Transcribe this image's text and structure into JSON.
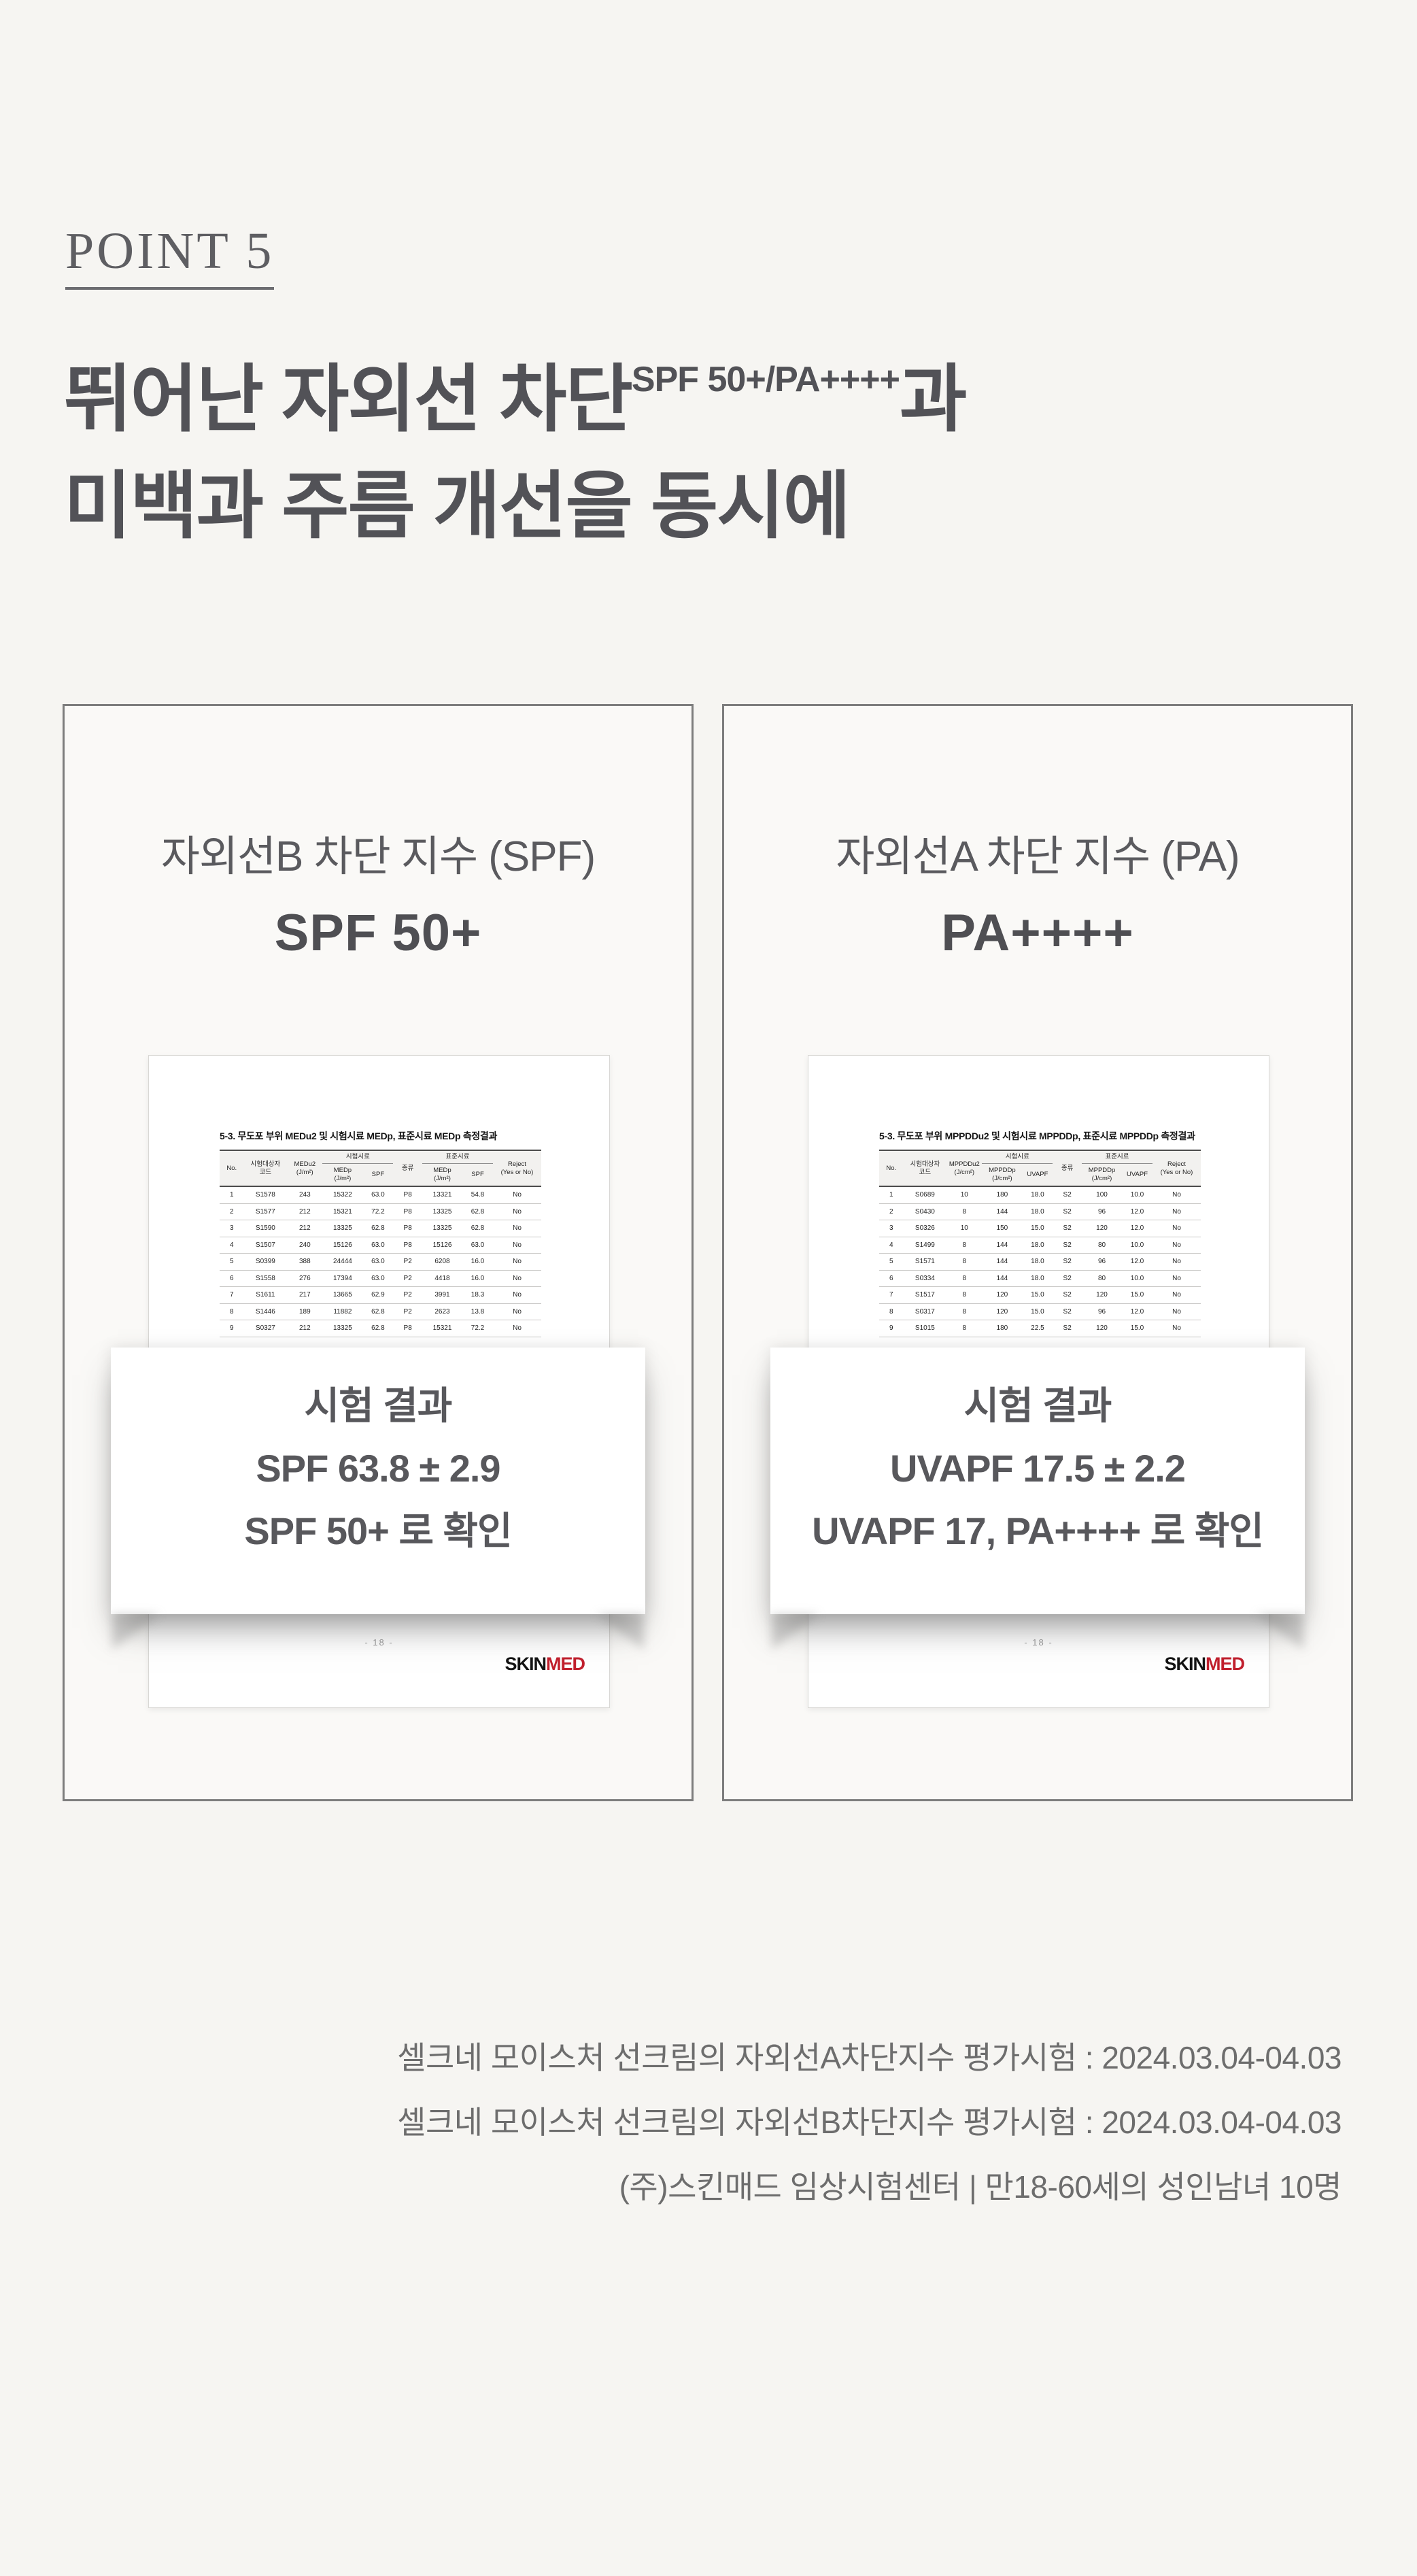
{
  "page": {
    "eyebrow": "POINT 5",
    "title": {
      "line1_prefix": "뛰어난 자외선 차단",
      "superscript": "SPF 50+/PA++++",
      "line1_suffix": "과",
      "line2": "미백과 주름 개선을 동시에"
    },
    "colors": {
      "background": "#f6f5f2",
      "heading_text": "#525257",
      "panel_border": "#7d7d7d",
      "logo_red": "#c2202e",
      "footer_text": "#6d6d6d"
    }
  },
  "panels": [
    {
      "subtitle": "자외선B 차단 지수 (SPF)",
      "headline": "SPF 50+",
      "document": {
        "table_title": "5-3. 무도포 부위 MEDu2 및 시험시료 MEDp, 표준시료 MEDp 측정결과",
        "headers": {
          "no": "No.",
          "subject_code": "시험대상자\n코드",
          "unprotected": "MEDu2\n(J/m²)",
          "group_test": "시험시료",
          "test_dose": "MEDp\n(J/m²)",
          "test_index": "SPF",
          "type": "종류",
          "group_standard": "표준시료",
          "standard_dose": "MEDp\n(J/m²)",
          "standard_index": "SPF",
          "reject": "Reject\n(Yes or No)"
        },
        "rows": [
          [
            "1",
            "S1578",
            "243",
            "15322",
            "63.0",
            "P8",
            "13321",
            "54.8",
            "No"
          ],
          [
            "2",
            "S1577",
            "212",
            "15321",
            "72.2",
            "P8",
            "13325",
            "62.8",
            "No"
          ],
          [
            "3",
            "S1590",
            "212",
            "13325",
            "62.8",
            "P8",
            "13325",
            "62.8",
            "No"
          ],
          [
            "4",
            "S1507",
            "240",
            "15126",
            "63.0",
            "P8",
            "15126",
            "63.0",
            "No"
          ],
          [
            "5",
            "S0399",
            "388",
            "24444",
            "63.0",
            "P2",
            "6208",
            "16.0",
            "No"
          ],
          [
            "6",
            "S1558",
            "276",
            "17394",
            "63.0",
            "P2",
            "4418",
            "16.0",
            "No"
          ],
          [
            "7",
            "S1611",
            "217",
            "13665",
            "62.9",
            "P2",
            "3991",
            "18.3",
            "No"
          ],
          [
            "8",
            "S1446",
            "189",
            "11882",
            "62.8",
            "P2",
            "2623",
            "13.8",
            "No"
          ],
          [
            "9",
            "S0327",
            "212",
            "13325",
            "62.8",
            "P8",
            "15321",
            "72.2",
            "No"
          ]
        ],
        "page_number": "- 18 -",
        "logo_black": "SKIN",
        "logo_red": "MED"
      },
      "result": {
        "heading": "시험 결과",
        "value": "SPF 63.8 ± 2.9",
        "confirm": "SPF 50+ 로 확인"
      }
    },
    {
      "subtitle": "자외선A 차단 지수 (PA)",
      "headline": "PA++++",
      "document": {
        "table_title": "5-3. 무도포 부위 MPPDDu2 및 시험시료 MPPDDp, 표준시료 MPPDDp 측정결과",
        "headers": {
          "no": "No.",
          "subject_code": "시험대상자\n코드",
          "unprotected": "MPPDDu2\n(J/cm²)",
          "group_test": "시험시료",
          "test_dose": "MPPDDp\n(J/cm²)",
          "test_index": "UVAPF",
          "type": "종류",
          "group_standard": "표준시료",
          "standard_dose": "MPPDDp\n(J/cm²)",
          "standard_index": "UVAPF",
          "reject": "Reject\n(Yes or No)"
        },
        "rows": [
          [
            "1",
            "S0689",
            "10",
            "180",
            "18.0",
            "S2",
            "100",
            "10.0",
            "No"
          ],
          [
            "2",
            "S0430",
            "8",
            "144",
            "18.0",
            "S2",
            "96",
            "12.0",
            "No"
          ],
          [
            "3",
            "S0326",
            "10",
            "150",
            "15.0",
            "S2",
            "120",
            "12.0",
            "No"
          ],
          [
            "4",
            "S1499",
            "8",
            "144",
            "18.0",
            "S2",
            "80",
            "10.0",
            "No"
          ],
          [
            "5",
            "S1571",
            "8",
            "144",
            "18.0",
            "S2",
            "96",
            "12.0",
            "No"
          ],
          [
            "6",
            "S0334",
            "8",
            "144",
            "18.0",
            "S2",
            "80",
            "10.0",
            "No"
          ],
          [
            "7",
            "S1517",
            "8",
            "120",
            "15.0",
            "S2",
            "120",
            "15.0",
            "No"
          ],
          [
            "8",
            "S0317",
            "8",
            "120",
            "15.0",
            "S2",
            "96",
            "12.0",
            "No"
          ],
          [
            "9",
            "S1015",
            "8",
            "180",
            "22.5",
            "S2",
            "120",
            "15.0",
            "No"
          ]
        ],
        "page_number": "- 18 -",
        "logo_black": "SKIN",
        "logo_red": "MED"
      },
      "result": {
        "heading": "시험 결과",
        "value": "UVAPF 17.5 ± 2.2",
        "confirm": "UVAPF 17, PA++++ 로 확인"
      }
    }
  ],
  "footer": {
    "lines": [
      "셀크네 모이스처 선크림의 자외선A차단지수 평가시험 : 2024.03.04-04.03",
      "셀크네 모이스처 선크림의 자외선B차단지수 평가시험 : 2024.03.04-04.03",
      "(주)스킨매드 임상시험센터 | 만18-60세의 성인남녀 10명"
    ]
  }
}
